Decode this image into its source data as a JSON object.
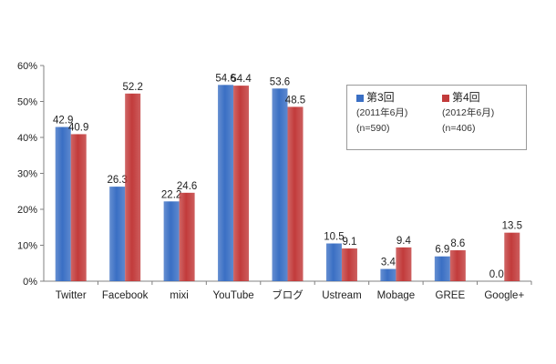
{
  "chart_data": {
    "type": "bar",
    "title": "",
    "xlabel": "",
    "ylabel": "",
    "ylim": [
      0,
      60
    ],
    "yticks": [
      "0%",
      "10%",
      "20%",
      "30%",
      "40%",
      "50%",
      "60%"
    ],
    "ytick_values": [
      0,
      10,
      20,
      30,
      40,
      50,
      60
    ],
    "grid": false,
    "legend_position": "top-right",
    "categories": [
      "Twitter",
      "Facebook",
      "mixi",
      "YouTube",
      "ブログ",
      "Ustream",
      "Mobage",
      "GREE",
      "Google+"
    ],
    "series": [
      {
        "name": "第3回",
        "period": "(2011年6月)",
        "sample": "(n=590)",
        "color": "#3a6fc4",
        "values": [
          42.9,
          26.3,
          22.2,
          54.6,
          53.6,
          10.5,
          3.4,
          6.9,
          0.0
        ],
        "labels": [
          "42.9",
          "26.3",
          "22.2",
          "54.6",
          "53.6",
          "10.5",
          "3.4",
          "6.9",
          "0.0"
        ]
      },
      {
        "name": "第4回",
        "period": "(2012年6月)",
        "sample": "(n=406)",
        "color": "#c23b3b",
        "values": [
          40.9,
          52.2,
          24.6,
          54.4,
          48.5,
          9.1,
          9.4,
          8.6,
          13.5
        ],
        "labels": [
          "40.9",
          "52.2",
          "24.6",
          "54.4",
          "48.5",
          "9.1",
          "9.4",
          "8.6",
          "13.5"
        ]
      }
    ]
  }
}
